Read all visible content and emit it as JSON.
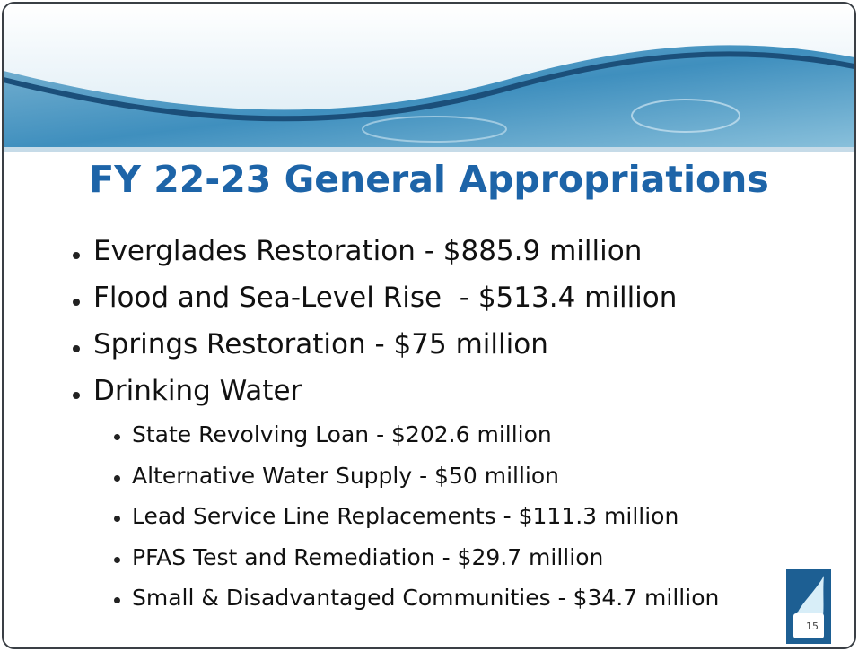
{
  "slide": {
    "title": "FY 22-23 General Appropriations",
    "bullets": [
      {
        "text": "Everglades Restoration - $885.9 million"
      },
      {
        "text": "Flood and Sea-Level Rise  - $513.4 million"
      },
      {
        "text": "Springs Restoration - $75 million"
      },
      {
        "text": "Drinking Water",
        "items": [
          "State Revolving Loan - $202.6 million",
          "Alternative Water Supply - $50 million",
          "Lead Service Line Replacements - $111.3 million",
          "PFAS Test and Remediation - $29.7 million",
          "Small & Disadvantaged Communities - $34.7 million"
        ]
      }
    ],
    "page_number": "15"
  }
}
